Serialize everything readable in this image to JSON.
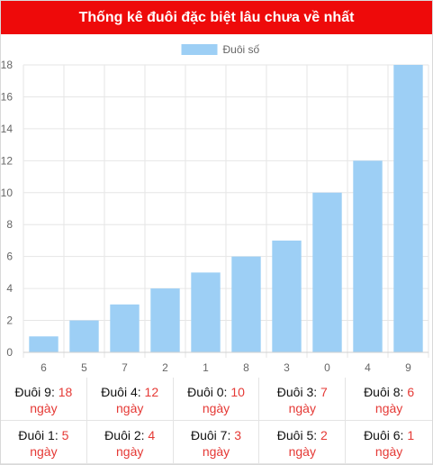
{
  "header": {
    "title": "Thống kê đuôi đặc biệt lâu chưa về nhất"
  },
  "chart_data": {
    "type": "bar",
    "legend": "Đuôi số",
    "legend_position": "top",
    "categories": [
      "6",
      "5",
      "7",
      "2",
      "1",
      "8",
      "3",
      "0",
      "4",
      "9"
    ],
    "series": [
      {
        "name": "Đuôi số",
        "values": [
          1,
          2,
          3,
          4,
          5,
          6,
          7,
          10,
          12,
          18
        ]
      }
    ],
    "ylim": [
      0,
      18
    ],
    "yticks": [
      0,
      2,
      4,
      6,
      8,
      10,
      12,
      14,
      16,
      18
    ],
    "grid": true,
    "bar_color": "#9dcff5",
    "grid_color": "#e6e6e6"
  },
  "stats": {
    "day_unit": "ngày",
    "items": [
      {
        "label": "Đuôi 9:",
        "value": "18"
      },
      {
        "label": "Đuôi 4:",
        "value": "12"
      },
      {
        "label": "Đuôi 0:",
        "value": "10"
      },
      {
        "label": "Đuôi 3:",
        "value": "7"
      },
      {
        "label": "Đuôi 8:",
        "value": "6"
      },
      {
        "label": "Đuôi 1:",
        "value": "5"
      },
      {
        "label": "Đuôi 2:",
        "value": "4"
      },
      {
        "label": "Đuôi 7:",
        "value": "3"
      },
      {
        "label": "Đuôi 5:",
        "value": "2"
      },
      {
        "label": "Đuôi 6:",
        "value": "1"
      }
    ]
  }
}
